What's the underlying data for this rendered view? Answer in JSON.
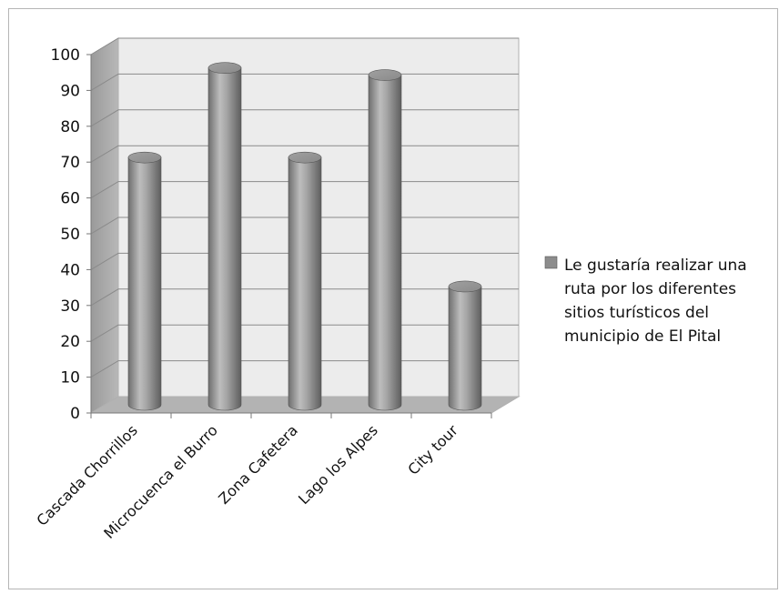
{
  "chart_data": {
    "type": "bar",
    "style": "3d-cylinder",
    "title": "",
    "xlabel": "",
    "ylabel": "",
    "categories": [
      "Cascada Chorrillos",
      "Microcuenca el Burro",
      "Zona Cafetera",
      "Lago los Alpes",
      "City tour"
    ],
    "series": [
      {
        "name": "Le gustaría realizar una ruta por los diferentes sitios turísticos del municipio de El Pital",
        "values": [
          69,
          94,
          69,
          92,
          33
        ],
        "color": "#8c8c8c"
      }
    ],
    "ylim": [
      0,
      100
    ],
    "yticks": [
      0,
      10,
      20,
      30,
      40,
      50,
      60,
      70,
      80,
      90,
      100
    ],
    "grid": true,
    "legend_position": "right",
    "legend_lines": [
      "Le gustaría realizar una",
      "ruta por los diferentes",
      "sitios turísticos del",
      "municipio de El Pital"
    ],
    "colors": {
      "back_wall": "#ececec",
      "side_wall": "#a9a9a9",
      "floor": "#b3b3b3",
      "gridline": "#8a8a8a",
      "bar": "#8c8c8c",
      "frame": "#b0b0b0"
    }
  }
}
